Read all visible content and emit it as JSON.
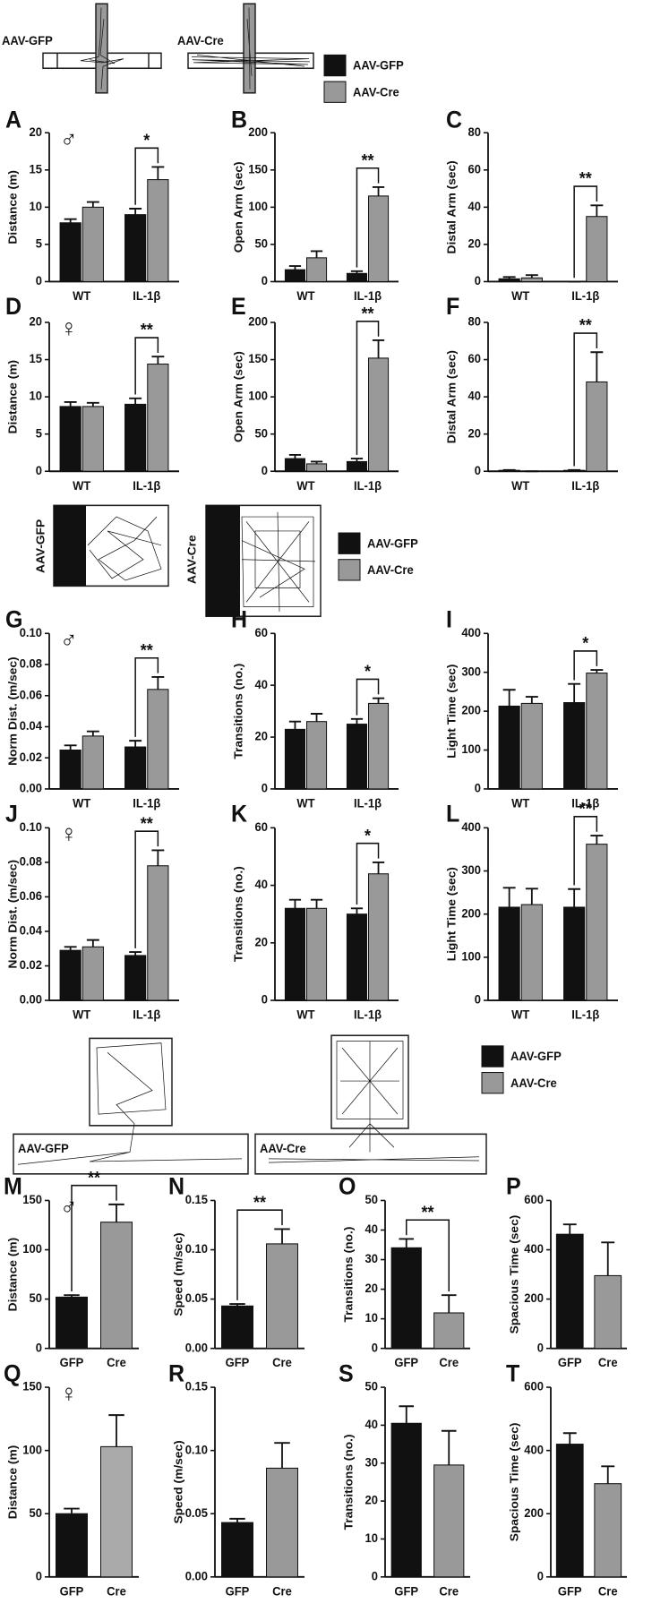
{
  "sections": [
    {
      "labels": [
        "AAV-GFP",
        "AAV-Cre"
      ],
      "legend": [
        {
          "label": "AAV-GFP",
          "color": "#111111"
        },
        {
          "label": "AAV-Cre",
          "color": "#999999"
        }
      ]
    },
    {
      "labels": [
        "AAV-GFP",
        "AAV-Cre"
      ],
      "legend": [
        {
          "label": "AAV-GFP",
          "color": "#111111"
        },
        {
          "label": "AAV-Cre",
          "color": "#999999"
        }
      ]
    },
    {
      "labels": [
        "AAV-GFP",
        "AAV-Cre"
      ],
      "legend": [
        {
          "label": "AAV-GFP",
          "color": "#111111"
        },
        {
          "label": "AAV-Cre",
          "color": "#999999"
        }
      ]
    }
  ],
  "chart_data": [
    {
      "type": "bar",
      "panel": "A",
      "sex": "♂",
      "ylabel": "Distance (m)",
      "categories": [
        "WT",
        "IL-1β"
      ],
      "ylim": [
        0,
        20
      ],
      "yticks": [
        0,
        5,
        10,
        15,
        20
      ],
      "series": [
        {
          "color": "#111111",
          "values": [
            7.9,
            9
          ],
          "errors": [
            0.5,
            0.8
          ]
        },
        {
          "color": "#999999",
          "values": [
            10,
            13.7
          ],
          "errors": [
            0.7,
            1.7
          ]
        }
      ],
      "significance": [
        null,
        "*"
      ]
    },
    {
      "type": "bar",
      "panel": "B",
      "ylabel": "Open Arm (sec)",
      "categories": [
        "WT",
        "IL-1β"
      ],
      "ylim": [
        0,
        200
      ],
      "yticks": [
        0,
        50,
        100,
        150,
        200
      ],
      "series": [
        {
          "color": "#111111",
          "values": [
            16,
            11
          ],
          "errors": [
            5,
            3
          ]
        },
        {
          "color": "#999999",
          "values": [
            32,
            115
          ],
          "errors": [
            9,
            12
          ]
        }
      ],
      "significance": [
        null,
        "**"
      ]
    },
    {
      "type": "bar",
      "panel": "C",
      "ylabel": "Distal Arm (sec)",
      "categories": [
        "WT",
        "IL-1β"
      ],
      "ylim": [
        0,
        80
      ],
      "yticks": [
        0,
        20,
        40,
        60,
        80
      ],
      "series": [
        {
          "color": "#111111",
          "values": [
            1.5,
            0
          ],
          "errors": [
            1,
            0
          ]
        },
        {
          "color": "#999999",
          "values": [
            2,
            35
          ],
          "errors": [
            1.5,
            6
          ]
        }
      ],
      "significance": [
        null,
        "**"
      ]
    },
    {
      "type": "bar",
      "panel": "D",
      "sex": "♀",
      "ylabel": "Distance (m)",
      "categories": [
        "WT",
        "IL-1β"
      ],
      "ylim": [
        0,
        20
      ],
      "yticks": [
        0,
        5,
        10,
        15,
        20
      ],
      "series": [
        {
          "color": "#111111",
          "values": [
            8.7,
            9
          ],
          "errors": [
            0.6,
            0.8
          ]
        },
        {
          "color": "#999999",
          "values": [
            8.7,
            14.4
          ],
          "errors": [
            0.5,
            1
          ]
        }
      ],
      "significance": [
        null,
        "**"
      ]
    },
    {
      "type": "bar",
      "panel": "E",
      "ylabel": "Open Arm (sec)",
      "categories": [
        "WT",
        "IL-1β"
      ],
      "ylim": [
        0,
        200
      ],
      "yticks": [
        0,
        50,
        100,
        150,
        200
      ],
      "series": [
        {
          "color": "#111111",
          "values": [
            17,
            13
          ],
          "errors": [
            5,
            4
          ]
        },
        {
          "color": "#999999",
          "values": [
            10,
            152
          ],
          "errors": [
            3,
            24
          ]
        }
      ],
      "significance": [
        null,
        "**"
      ]
    },
    {
      "type": "bar",
      "panel": "F",
      "ylabel": "Distal Arm (sec)",
      "categories": [
        "WT",
        "IL-1β"
      ],
      "ylim": [
        0,
        80
      ],
      "yticks": [
        0,
        20,
        40,
        60,
        80
      ],
      "series": [
        {
          "color": "#111111",
          "values": [
            0.5,
            0.5
          ],
          "errors": [
            0.2,
            0.2
          ]
        },
        {
          "color": "#999999",
          "values": [
            0,
            48
          ],
          "errors": [
            0,
            16
          ]
        }
      ],
      "significance": [
        null,
        "**"
      ]
    },
    {
      "type": "bar",
      "panel": "G",
      "sex": "♂",
      "ylabel": "Norm Dist. (m/sec)",
      "categories": [
        "WT",
        "IL-1β"
      ],
      "ylim": [
        0,
        0.1
      ],
      "yticks": [
        {
          "value": 0,
          "label": "0.00"
        },
        {
          "value": 0.02,
          "label": "0.02"
        },
        {
          "value": 0.04,
          "label": "0.04"
        },
        {
          "value": 0.06,
          "label": "0.06"
        },
        {
          "value": 0.08,
          "label": "0.08"
        },
        {
          "value": 0.1,
          "label": "0.10"
        }
      ],
      "series": [
        {
          "color": "#111111",
          "values": [
            0.025,
            0.027
          ],
          "errors": [
            0.003,
            0.004
          ]
        },
        {
          "color": "#999999",
          "values": [
            0.034,
            0.064
          ],
          "errors": [
            0.003,
            0.008
          ]
        }
      ],
      "significance": [
        null,
        "**"
      ]
    },
    {
      "type": "bar",
      "panel": "H",
      "ylabel": "Transitions (no.)",
      "categories": [
        "WT",
        "IL-1β"
      ],
      "ylim": [
        0,
        60
      ],
      "yticks": [
        0,
        20,
        40,
        60
      ],
      "series": [
        {
          "color": "#111111",
          "values": [
            23,
            25
          ],
          "errors": [
            3,
            2
          ]
        },
        {
          "color": "#999999",
          "values": [
            26,
            33
          ],
          "errors": [
            3,
            2
          ]
        }
      ],
      "significance": [
        null,
        "*"
      ]
    },
    {
      "type": "bar",
      "panel": "I",
      "ylabel": "Light Time (sec)",
      "categories": [
        "WT",
        "IL-1β"
      ],
      "ylim": [
        0,
        400
      ],
      "yticks": [
        0,
        100,
        200,
        300,
        400
      ],
      "series": [
        {
          "color": "#111111",
          "values": [
            213,
            222
          ],
          "errors": [
            42,
            48
          ]
        },
        {
          "color": "#999999",
          "values": [
            220,
            298
          ],
          "errors": [
            17,
            8
          ]
        }
      ],
      "significance": [
        null,
        "*"
      ]
    },
    {
      "type": "bar",
      "panel": "J",
      "sex": "♀",
      "ylabel": "Norm Dist. (m/sec)",
      "categories": [
        "WT",
        "IL-1β"
      ],
      "ylim": [
        0,
        0.1
      ],
      "yticks": [
        {
          "value": 0,
          "label": "0.00"
        },
        {
          "value": 0.02,
          "label": "0.02"
        },
        {
          "value": 0.04,
          "label": "0.04"
        },
        {
          "value": 0.06,
          "label": "0.06"
        },
        {
          "value": 0.08,
          "label": "0.08"
        },
        {
          "value": 0.1,
          "label": "0.10"
        }
      ],
      "series": [
        {
          "color": "#111111",
          "values": [
            0.029,
            0.026
          ],
          "errors": [
            0.002,
            0.002
          ]
        },
        {
          "color": "#999999",
          "values": [
            0.031,
            0.078
          ],
          "errors": [
            0.004,
            0.009
          ]
        }
      ],
      "significance": [
        null,
        "**"
      ]
    },
    {
      "type": "bar",
      "panel": "K",
      "ylabel": "Transitions (no.)",
      "categories": [
        "WT",
        "IL-1β"
      ],
      "ylim": [
        0,
        60
      ],
      "yticks": [
        0,
        20,
        40,
        60
      ],
      "series": [
        {
          "color": "#111111",
          "values": [
            32,
            30
          ],
          "errors": [
            3,
            2
          ]
        },
        {
          "color": "#999999",
          "values": [
            32,
            44
          ],
          "errors": [
            3,
            4
          ]
        }
      ],
      "significance": [
        null,
        "*"
      ]
    },
    {
      "type": "bar",
      "panel": "L",
      "ylabel": "Light Time (sec)",
      "categories": [
        "WT",
        "IL-1β"
      ],
      "ylim": [
        0,
        400
      ],
      "yticks": [
        0,
        100,
        200,
        300,
        400
      ],
      "series": [
        {
          "color": "#111111",
          "values": [
            216,
            216
          ],
          "errors": [
            45,
            42
          ]
        },
        {
          "color": "#999999",
          "values": [
            222,
            362
          ],
          "errors": [
            37,
            20
          ]
        }
      ],
      "significance": [
        null,
        "**"
      ]
    },
    {
      "type": "bar",
      "panel": "M",
      "sex": "♂",
      "ylabel": "Distance (m)",
      "categories": [
        "GFP",
        "Cre"
      ],
      "ylim": [
        0,
        150
      ],
      "yticks": [
        0,
        50,
        100,
        150
      ],
      "colors": [
        "#111111",
        "#999999"
      ],
      "values": [
        52,
        128
      ],
      "errors": [
        2,
        18
      ],
      "significance": "**"
    },
    {
      "type": "bar",
      "panel": "N",
      "ylabel": "Speed (m/sec)",
      "categories": [
        "GFP",
        "Cre"
      ],
      "ylim": [
        0,
        0.15
      ],
      "yticks": [
        {
          "value": 0,
          "label": "0.00"
        },
        {
          "value": 0.05,
          "label": "0.05"
        },
        {
          "value": 0.1,
          "label": "0.10"
        },
        {
          "value": 0.15,
          "label": "0.15"
        }
      ],
      "colors": [
        "#111111",
        "#999999"
      ],
      "values": [
        0.043,
        0.106
      ],
      "errors": [
        0.002,
        0.015
      ],
      "significance": "**"
    },
    {
      "type": "bar",
      "panel": "O",
      "ylabel": "Transitions (no.)",
      "categories": [
        "GFP",
        "Cre"
      ],
      "ylim": [
        0,
        50
      ],
      "yticks": [
        0,
        10,
        20,
        30,
        40,
        50
      ],
      "colors": [
        "#111111",
        "#999999"
      ],
      "values": [
        34,
        12
      ],
      "errors": [
        3,
        6
      ],
      "significance": "**"
    },
    {
      "type": "bar",
      "panel": "P",
      "ylabel": "Spacious Time (sec)",
      "categories": [
        "GFP",
        "Cre"
      ],
      "ylim": [
        0,
        600
      ],
      "yticks": [
        0,
        200,
        400,
        600
      ],
      "colors": [
        "#111111",
        "#999999"
      ],
      "values": [
        463,
        295
      ],
      "errors": [
        40,
        135
      ]
    },
    {
      "type": "bar",
      "panel": "Q",
      "sex": "♀",
      "ylabel": "Distance (m)",
      "categories": [
        "GFP",
        "Cre"
      ],
      "ylim": [
        0,
        150
      ],
      "yticks": [
        0,
        50,
        100,
        150
      ],
      "colors": [
        "#111111",
        "#aaaaaa"
      ],
      "values": [
        50,
        103
      ],
      "errors": [
        4,
        25
      ]
    },
    {
      "type": "bar",
      "panel": "R",
      "ylabel": "Speed (m/sec)",
      "categories": [
        "GFP",
        "Cre"
      ],
      "ylim": [
        0,
        0.15
      ],
      "yticks": [
        {
          "value": 0,
          "label": "0.00"
        },
        {
          "value": 0.05,
          "label": "0.05"
        },
        {
          "value": 0.1,
          "label": "0.10"
        },
        {
          "value": 0.15,
          "label": "0.15"
        }
      ],
      "colors": [
        "#111111",
        "#999999"
      ],
      "values": [
        0.043,
        0.086
      ],
      "errors": [
        0.003,
        0.02
      ]
    },
    {
      "type": "bar",
      "panel": "S",
      "ylabel": "Transitions (no.)",
      "categories": [
        "GFP",
        "Cre"
      ],
      "ylim": [
        0,
        50
      ],
      "yticks": [
        0,
        10,
        20,
        30,
        40,
        50
      ],
      "colors": [
        "#111111",
        "#999999"
      ],
      "values": [
        40.5,
        29.5
      ],
      "errors": [
        4.5,
        9
      ]
    },
    {
      "type": "bar",
      "panel": "T",
      "ylabel": "Spacious Time (sec)",
      "categories": [
        "GFP",
        "Cre"
      ],
      "ylim": [
        0,
        600
      ],
      "yticks": [
        0,
        200,
        400,
        600
      ],
      "colors": [
        "#111111",
        "#999999"
      ],
      "values": [
        420,
        295
      ],
      "errors": [
        35,
        55
      ]
    }
  ]
}
